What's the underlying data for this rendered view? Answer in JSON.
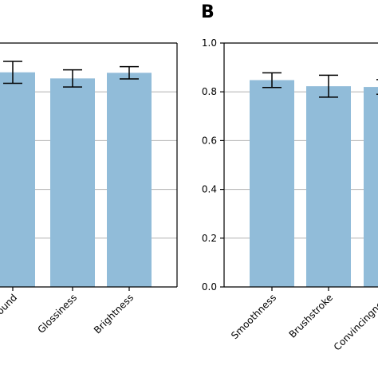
{
  "panels": [
    {
      "panel_label": "",
      "chart_data": {
        "type": "bar",
        "categories": [
          "Background",
          "Glossiness",
          "Brightness"
        ],
        "values": [
          0.88,
          0.855,
          0.878
        ],
        "errors": [
          0.045,
          0.035,
          0.025
        ],
        "ylim": [
          0,
          1.0
        ],
        "yticks": [],
        "grid": "horizontal",
        "bar_color": "#91bcd9"
      }
    },
    {
      "panel_label": "B",
      "chart_data": {
        "type": "bar",
        "categories": [
          "Smoothness",
          "Brushstroke",
          "Convincingness"
        ],
        "values": [
          0.848,
          0.823,
          0.82
        ],
        "errors": [
          0.03,
          0.045,
          0.03
        ],
        "ylim": [
          0,
          1.0
        ],
        "yticks": [
          "0.0",
          "0.2",
          "0.4",
          "0.6",
          "0.8",
          "1.0"
        ],
        "grid": "horizontal",
        "bar_color": "#91bcd9"
      }
    }
  ]
}
